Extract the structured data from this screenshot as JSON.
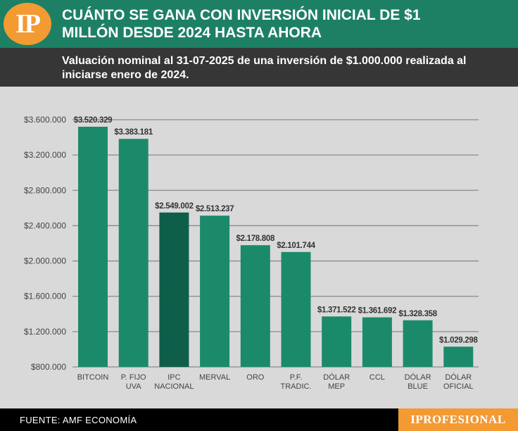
{
  "header": {
    "logo_text": "IP",
    "title": "CUÁNTO SE GANA CON INVERSIÓN INICIAL DE $1 MILLÓN DESDE 2024 HASTA AHORA",
    "subtitle": "Valuación nominal al 31-07-2025 de una inversión de $1.000.000 realizada al iniciarse enero de 2024."
  },
  "footer": {
    "source": "FUENTE: AMF ECONOMÍA",
    "brand": "IPROFESIONAL"
  },
  "colors": {
    "bar": "#1b8a6b",
    "bar_highlight": "#0f5e4a",
    "header": "#1d8065",
    "accent": "#f39a33"
  },
  "chart_data": {
    "type": "bar",
    "categories": [
      [
        "BITCOIN"
      ],
      [
        "P. FIJO",
        "UVA"
      ],
      [
        "IPC",
        "NACIONAL"
      ],
      [
        "MERVAL"
      ],
      [
        "ORO"
      ],
      [
        "P.F.",
        "TRADIC."
      ],
      [
        "DÓLAR",
        "MEP"
      ],
      [
        "CCL"
      ],
      [
        "DÓLAR",
        "BLUE"
      ],
      [
        "DÓLAR",
        "OFICIAL"
      ]
    ],
    "values": [
      3520329,
      3383181,
      2549002,
      2513237,
      2178808,
      2101744,
      1371522,
      1361692,
      1328358,
      1029298
    ],
    "value_labels": [
      "$3.520.329",
      "$3.383.181",
      "$2.549.002",
      "$2.513.237",
      "$2.178.808",
      "$2.101.744",
      "$1.371.522",
      "$1.361.692",
      "$1.328.358",
      "$1.029.298"
    ],
    "highlight_index": 2,
    "yticks": [
      800000,
      1200000,
      1600000,
      2000000,
      2400000,
      2800000,
      3200000,
      3600000
    ],
    "ytick_labels": [
      "$800.000",
      "$1.200.000",
      "$1.600.000",
      "$2.000.000",
      "$2.400.000",
      "$2.800.000",
      "$3.200.000",
      "$3.600.000"
    ],
    "ylim": [
      800000,
      3600000
    ],
    "grid": true
  }
}
